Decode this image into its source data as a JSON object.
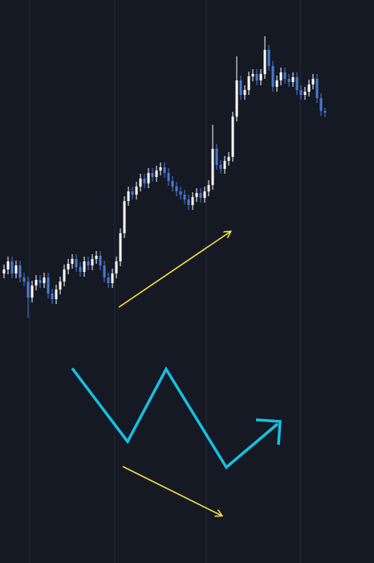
{
  "chart_data": {
    "type": "candlestick",
    "up_color": "#ffffff",
    "down_color": "#4a7bd0",
    "ylim": [
      0,
      700
    ],
    "open": [
      360,
      365,
      375,
      360,
      370,
      355,
      350,
      330,
      345,
      352,
      348,
      355,
      335,
      328,
      340,
      350,
      365,
      372,
      378,
      368,
      362,
      375,
      370,
      378,
      382,
      370,
      355,
      348,
      360,
      375,
      410,
      450,
      462,
      458,
      468,
      478,
      472,
      485,
      480,
      488,
      492,
      485,
      475,
      468,
      462,
      458,
      452,
      445,
      455,
      460,
      454,
      462,
      470,
      515,
      495,
      490,
      500,
      505,
      555,
      600,
      582,
      588,
      605,
      608,
      600,
      608,
      638,
      618,
      592,
      600,
      610,
      602,
      598,
      604,
      588,
      582,
      586,
      595,
      602,
      578,
      562
    ],
    "high": [
      371,
      381,
      381,
      376,
      376,
      361,
      356,
      351,
      358,
      358,
      361,
      361,
      341,
      346,
      356,
      371,
      378,
      384,
      384,
      374,
      381,
      381,
      384,
      388,
      388,
      376,
      361,
      366,
      381,
      416,
      456,
      468,
      468,
      474,
      484,
      484,
      491,
      491,
      494,
      498,
      498,
      491,
      481,
      474,
      468,
      464,
      458,
      461,
      466,
      466,
      468,
      476,
      545,
      521,
      501,
      506,
      511,
      561,
      630,
      606,
      594,
      611,
      614,
      614,
      614,
      655,
      644,
      624,
      606,
      616,
      616,
      608,
      610,
      610,
      594,
      592,
      601,
      608,
      608,
      584,
      566
    ],
    "low": [
      354,
      359,
      354,
      354,
      349,
      344,
      305,
      324,
      339,
      342,
      342,
      329,
      322,
      322,
      334,
      344,
      359,
      366,
      362,
      356,
      356,
      364,
      364,
      372,
      364,
      349,
      342,
      342,
      354,
      369,
      404,
      444,
      452,
      452,
      462,
      466,
      466,
      474,
      474,
      482,
      479,
      469,
      462,
      456,
      452,
      446,
      439,
      439,
      449,
      448,
      448,
      456,
      464,
      489,
      484,
      484,
      494,
      499,
      549,
      576,
      576,
      582,
      599,
      594,
      594,
      602,
      612,
      586,
      586,
      594,
      596,
      592,
      592,
      582,
      576,
      576,
      580,
      589,
      572,
      556,
      554
    ],
    "close": [
      365,
      375,
      360,
      370,
      355,
      350,
      330,
      345,
      352,
      348,
      355,
      335,
      328,
      340,
      350,
      365,
      372,
      378,
      368,
      362,
      375,
      370,
      378,
      382,
      370,
      355,
      348,
      360,
      375,
      410,
      450,
      462,
      458,
      468,
      478,
      472,
      485,
      480,
      488,
      492,
      485,
      475,
      468,
      462,
      458,
      452,
      445,
      455,
      460,
      454,
      462,
      470,
      515,
      495,
      490,
      500,
      505,
      555,
      600,
      582,
      588,
      605,
      608,
      600,
      608,
      638,
      618,
      592,
      600,
      610,
      602,
      598,
      604,
      588,
      582,
      586,
      595,
      602,
      578,
      562,
      560
    ]
  }
}
